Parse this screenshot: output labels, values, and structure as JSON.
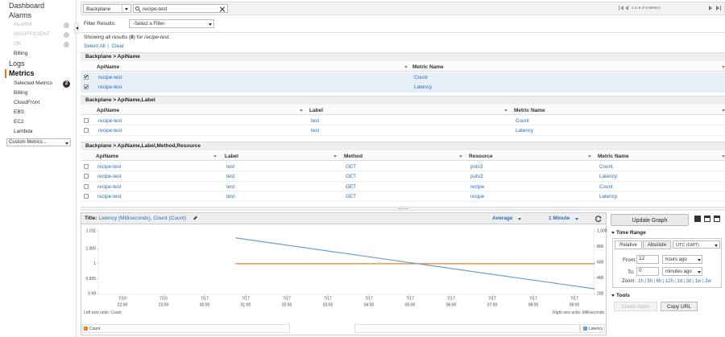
{
  "sidebar": {
    "items": [
      "Dashboard",
      "Alarms",
      "ALARM",
      "INSUFFICIENT",
      "OK",
      "Billing",
      "Logs",
      "Metrics",
      "Selected Metrics",
      "Billing",
      "CloudFront",
      "EBS",
      "EC2",
      "Lambda"
    ],
    "selected_badge": "2",
    "custom_select": "Custom Metrics..."
  },
  "toolbar": {
    "namespace": "Backplane",
    "search": "recipe-test",
    "pagination": "1 to 8 of 8 Metrics"
  },
  "filter": {
    "label": "Filter Results:",
    "select": "-Select a Filter-"
  },
  "results": {
    "prefix": "Showing all results (",
    "count": "8",
    "middle": ") for ",
    "query": "recipe-test",
    "suffix": ".",
    "select_all": "Select All",
    "separator": "|",
    "clear": "Clear"
  },
  "groups": [
    {
      "title": "Backplane > ApiName",
      "headers": [
        "ApiName",
        "Metric Name"
      ],
      "rows": [
        {
          "checked": true,
          "cells": [
            "recipe-test",
            "Count"
          ]
        },
        {
          "checked": true,
          "cells": [
            "recipe-test",
            "Latency"
          ]
        }
      ]
    },
    {
      "title": "Backplane > ApiName,Label",
      "headers": [
        "ApiName",
        "Label",
        "Metric Name"
      ],
      "rows": [
        {
          "checked": false,
          "cells": [
            "recipe-test",
            "test",
            "Count"
          ]
        },
        {
          "checked": false,
          "cells": [
            "recipe-test",
            "test",
            "Latency"
          ]
        }
      ]
    },
    {
      "title": "Backplane > ApiName,Label,Method,Resource",
      "headers": [
        "ApiName",
        "Label",
        "Method",
        "Resource",
        "Metric Name"
      ],
      "rows": [
        {
          "checked": false,
          "cells": [
            "recipe-test",
            "test",
            "GET",
            "puts3",
            "Count"
          ]
        },
        {
          "checked": false,
          "cells": [
            "recipe-test",
            "test",
            "GET",
            "puts3",
            "Latency"
          ]
        },
        {
          "checked": false,
          "cells": [
            "recipe-test",
            "test",
            "GET",
            "recipe",
            "Count"
          ]
        },
        {
          "checked": false,
          "cells": [
            "recipe-test",
            "test",
            "GET",
            "recipe",
            "Latency"
          ]
        }
      ]
    }
  ],
  "graph": {
    "type": "line",
    "title_prefix": "Title:",
    "title": "Latency (Milliseconds), Count (Count)",
    "statistic": "Average",
    "period": "1 Minute",
    "xticks": [
      {
        "date": "7/16",
        "time": "22:00"
      },
      {
        "date": "7/16",
        "time": "23:00"
      },
      {
        "date": "7/17",
        "time": "00:00"
      },
      {
        "date": "7/17",
        "time": "01:00"
      },
      {
        "date": "7/17",
        "time": "02:00"
      },
      {
        "date": "7/17",
        "time": "03:00"
      },
      {
        "date": "7/17",
        "time": "04:00"
      },
      {
        "date": "7/17",
        "time": "05:00"
      },
      {
        "date": "7/17",
        "time": "06:00"
      },
      {
        "date": "7/17",
        "time": "07:00"
      },
      {
        "date": "7/17",
        "time": "08:00"
      },
      {
        "date": "7/17",
        "time": "09:00"
      }
    ],
    "ylim": [
      0.99,
      1.011
    ],
    "yticks": [
      1.011,
      1.005,
      1,
      0.995,
      0.99
    ],
    "y2lim": [
      200,
      1000
    ],
    "y2ticks": [
      {
        "value": 1000,
        "label": "1,000"
      },
      800,
      600,
      400,
      200
    ],
    "series": [
      {
        "name": "Count",
        "color": "#f0821e",
        "x": [
          "7/17 00:45",
          "7/17 09:30"
        ],
        "values": [
          1,
          1
        ]
      },
      {
        "name": "Latency",
        "color": "#6a9fd4",
        "axis": "y2",
        "x": [
          "7/17 00:45",
          "7/17 09:30"
        ],
        "values": [
          910,
          260
        ]
      }
    ],
    "left_units": "Left axis units: Count",
    "right_units": "Right axis units: Milliseconds"
  },
  "side": {
    "update": "Update Graph",
    "time_range": "Time Range",
    "tabs": [
      "Relative",
      "Absolute"
    ],
    "timezone": "UTC (GMT)",
    "from_label": "From:",
    "from_value": "12",
    "from_unit": "hours ago",
    "to_label": "To:",
    "to_value": "0",
    "to_unit": "minutes ago",
    "zoom_label": "Zoom:",
    "zoom": [
      "1h",
      "3h",
      "6h",
      "12h",
      "1d",
      "3d",
      "1w",
      "2w"
    ],
    "zoom_separator": "|",
    "tools": "Tools",
    "create_alarm": "Create Alarm",
    "copy_url": "Copy URL"
  }
}
